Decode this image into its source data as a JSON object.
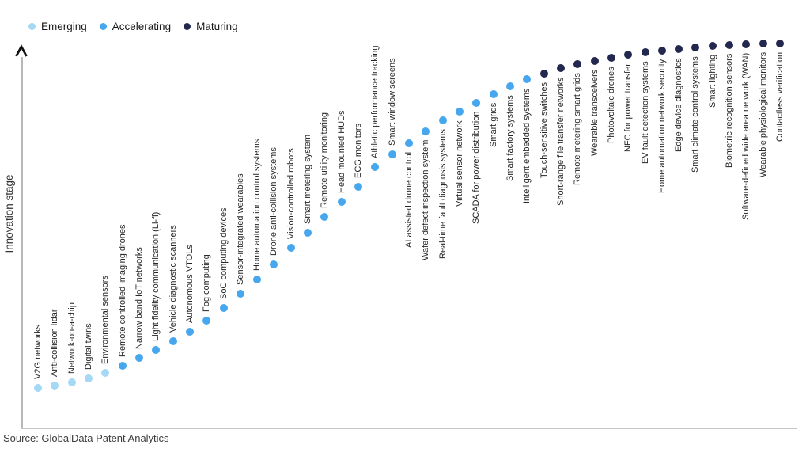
{
  "source_note": "Source: GlobalData Patent Analytics",
  "chart_data": {
    "type": "scatter",
    "title": "",
    "ylabel": "Innovation stage",
    "xlabel": "",
    "grid": false,
    "legend_position": "top-left",
    "value_range": [
      0,
      100
    ],
    "legend": [
      {
        "label": "Emerging",
        "color": "#A5D8F5"
      },
      {
        "label": "Accelerating",
        "color": "#47A7EE"
      },
      {
        "label": "Maturing",
        "color": "#23284E"
      }
    ],
    "stage_colors": {
      "Emerging": "#A5D8F5",
      "Accelerating": "#47A7EE",
      "Maturing": "#23284E"
    },
    "points": [
      {
        "label": "V2G networks",
        "stage": "Emerging",
        "value": 10.6
      },
      {
        "label": "Anti-collision lidar",
        "stage": "Emerging",
        "value": 11.2
      },
      {
        "label": "Network-on-a-chip",
        "stage": "Emerging",
        "value": 12.0
      },
      {
        "label": "Digital twins",
        "stage": "Emerging",
        "value": 13.0
      },
      {
        "label": "Environmental sensors",
        "stage": "Emerging",
        "value": 14.4
      },
      {
        "label": "Remote controlled imaging drones",
        "stage": "Accelerating",
        "value": 16.3
      },
      {
        "label": "Narrow band IoT networks",
        "stage": "Accelerating",
        "value": 18.3
      },
      {
        "label": "Light fidelity communication (Li-fi)",
        "stage": "Accelerating",
        "value": 20.3
      },
      {
        "label": "Vehicle diagnostic scanners",
        "stage": "Accelerating",
        "value": 22.6
      },
      {
        "label": "Autonomous VTOLs",
        "stage": "Accelerating",
        "value": 25.0
      },
      {
        "label": "Fog computing",
        "stage": "Accelerating",
        "value": 27.8
      },
      {
        "label": "SoC computing devices",
        "stage": "Accelerating",
        "value": 31.1
      },
      {
        "label": "Sensor-integrated wearables",
        "stage": "Accelerating",
        "value": 34.8
      },
      {
        "label": "Home automation control systems",
        "stage": "Accelerating",
        "value": 38.4
      },
      {
        "label": "Drone anti-collision systems",
        "stage": "Accelerating",
        "value": 42.3
      },
      {
        "label": "Vision-controlled robots",
        "stage": "Accelerating",
        "value": 46.5
      },
      {
        "label": "Smart metering system",
        "stage": "Accelerating",
        "value": 50.4
      },
      {
        "label": "Remote utility monitoring",
        "stage": "Accelerating",
        "value": 54.5
      },
      {
        "label": "Head mounted HUDs",
        "stage": "Accelerating",
        "value": 58.3
      },
      {
        "label": "ECG monitors",
        "stage": "Accelerating",
        "value": 62.2
      },
      {
        "label": "Athletic performance tracking",
        "stage": "Accelerating",
        "value": 67.3
      },
      {
        "label": "Smart window screens",
        "stage": "Accelerating",
        "value": 70.5
      },
      {
        "label": "AI assisted drone control",
        "stage": "Accelerating",
        "value": 73.4
      },
      {
        "label": "Wafer defect inspection system",
        "stage": "Accelerating",
        "value": 76.4
      },
      {
        "label": "Real-time fault diagnosis systems",
        "stage": "Accelerating",
        "value": 79.3
      },
      {
        "label": "Virtual sensor network",
        "stage": "Accelerating",
        "value": 81.5
      },
      {
        "label": "SCADA for power distribution",
        "stage": "Accelerating",
        "value": 83.7
      },
      {
        "label": "Smart grids",
        "stage": "Accelerating",
        "value": 86.0
      },
      {
        "label": "Smart factory systems",
        "stage": "Accelerating",
        "value": 88.0
      },
      {
        "label": "Intelligent embedded systems",
        "stage": "Accelerating",
        "value": 89.8
      },
      {
        "label": "Touch-sensitive switches",
        "stage": "Maturing",
        "value": 91.3
      },
      {
        "label": "Short-range file transfer networks",
        "stage": "Maturing",
        "value": 92.7
      },
      {
        "label": "Remote metering smart grids",
        "stage": "Maturing",
        "value": 93.7
      },
      {
        "label": "Wearable transceivers",
        "stage": "Maturing",
        "value": 94.5
      },
      {
        "label": "Photovoltaic drones",
        "stage": "Maturing",
        "value": 95.3
      },
      {
        "label": "NFC for power transfer",
        "stage": "Maturing",
        "value": 96.1
      },
      {
        "label": "EV fault detection systems",
        "stage": "Maturing",
        "value": 96.7
      },
      {
        "label": "Home automation network security",
        "stage": "Maturing",
        "value": 97.2
      },
      {
        "label": "Edge device diagnostics",
        "stage": "Maturing",
        "value": 97.6
      },
      {
        "label": "Smart climate control systems",
        "stage": "Maturing",
        "value": 98.0
      },
      {
        "label": "Smart lighting",
        "stage": "Maturing",
        "value": 98.4
      },
      {
        "label": "Biometric recognition sensors",
        "stage": "Maturing",
        "value": 98.6
      },
      {
        "label": "Software-defined wide area network (WAN)",
        "stage": "Maturing",
        "value": 98.8
      },
      {
        "label": "Wearable physiological monitors",
        "stage": "Maturing",
        "value": 99.0
      },
      {
        "label": "Contactless verification",
        "stage": "Maturing",
        "value": 99.0
      }
    ]
  }
}
